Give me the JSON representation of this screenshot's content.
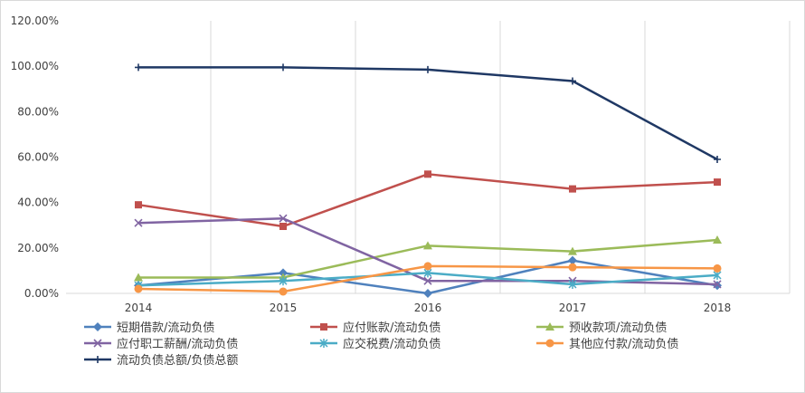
{
  "chart_data": {
    "type": "line",
    "title": "",
    "xlabel": "",
    "ylabel": "",
    "x": [
      "2014",
      "2015",
      "2016",
      "2017",
      "2018"
    ],
    "ylim": [
      0,
      120
    ],
    "yticks": [
      "0.00%",
      "20.00%",
      "40.00%",
      "60.00%",
      "80.00%",
      "100.00%",
      "120.00%"
    ],
    "grid": {
      "vertical": true,
      "horizontal": false
    },
    "legend_position": "bottom",
    "series": [
      {
        "name": "短期借款/流动负债",
        "color": "#4f81bd",
        "marker": "diamond",
        "values": [
          3.5,
          9.0,
          0.0,
          14.5,
          3.5
        ]
      },
      {
        "name": "应付账款/流动负债",
        "color": "#c0504d",
        "marker": "square",
        "values": [
          39.0,
          29.5,
          52.5,
          46.0,
          49.0
        ]
      },
      {
        "name": "预收款项/流动负债",
        "color": "#9bbb59",
        "marker": "triangle",
        "values": [
          7.0,
          7.0,
          21.0,
          18.5,
          23.5
        ]
      },
      {
        "name": "应付职工薪酬/流动负债",
        "color": "#8064a2",
        "marker": "x",
        "values": [
          31.0,
          33.0,
          5.5,
          5.5,
          4.0
        ]
      },
      {
        "name": "应交税费/流动负债",
        "color": "#4bacc6",
        "marker": "star",
        "values": [
          3.5,
          5.5,
          9.0,
          4.0,
          8.0
        ]
      },
      {
        "name": "其他应付款/流动负债",
        "color": "#f79646",
        "marker": "circle",
        "values": [
          2.0,
          0.8,
          12.0,
          11.5,
          11.0
        ]
      },
      {
        "name": "流动负债总额/负债总额",
        "color": "#1f3864",
        "marker": "plus",
        "values": [
          99.5,
          99.5,
          98.5,
          93.5,
          59.0
        ]
      }
    ]
  }
}
